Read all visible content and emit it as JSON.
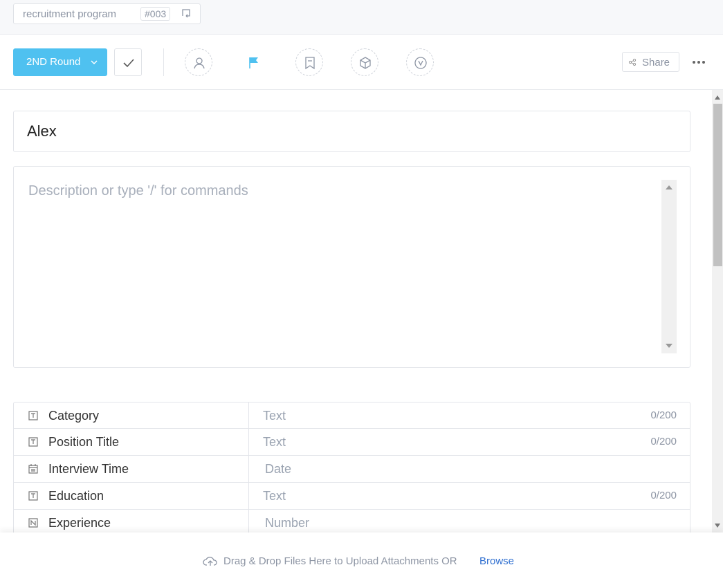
{
  "header": {
    "project": "recruitment program",
    "id": "#003"
  },
  "toolbar": {
    "status": "2ND Round",
    "share": "Share"
  },
  "task": {
    "title": "Alex",
    "description_placeholder": "Description or type '/' for commands"
  },
  "fields": [
    {
      "label": "Category",
      "placeholder": "Text",
      "counter": "0/200"
    },
    {
      "label": "Position Title",
      "placeholder": "Text",
      "counter": "0/200"
    },
    {
      "label": "Interview Time",
      "placeholder": "Date"
    },
    {
      "label": "Education",
      "placeholder": "Text",
      "counter": "0/200"
    },
    {
      "label": "Experience",
      "placeholder": "Number"
    }
  ],
  "footer": {
    "upload_text": "Drag & Drop Files Here to Upload Attachments OR",
    "browse": "Browse"
  }
}
